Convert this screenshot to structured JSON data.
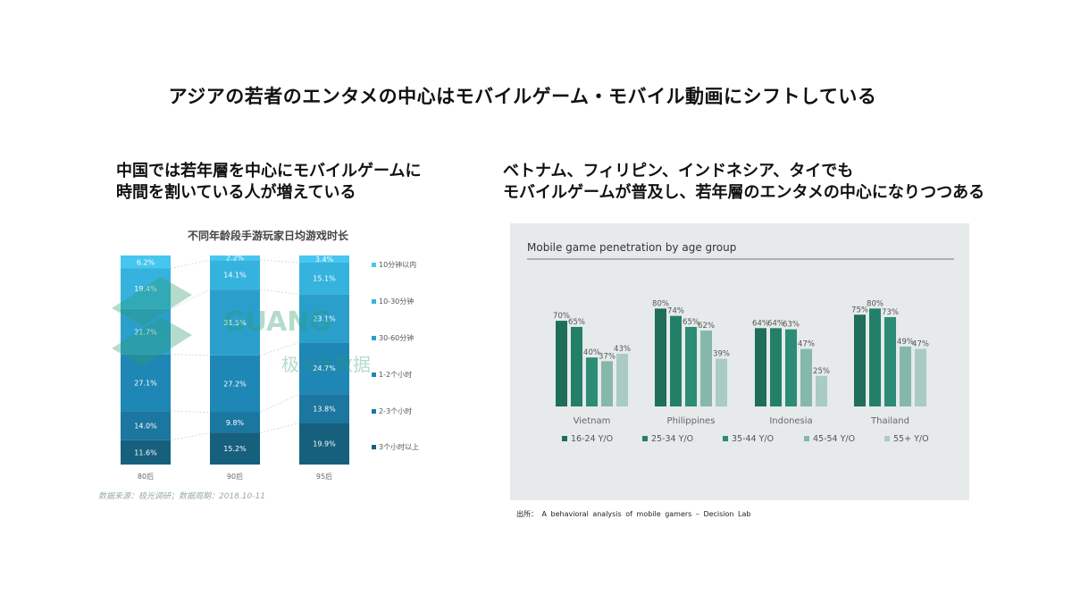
{
  "page": {
    "main_title": "アジアの若者のエンタメの中心はモバイルゲーム・モバイル動画にシフトしている",
    "left_subtitle_line1": "中国では若年層を中心にモバイルゲームに",
    "left_subtitle_line2": "時間を割いている人が増えている",
    "right_subtitle_line1": "ベトナム、フィリピン、インドネシア、タイでも",
    "right_subtitle_line2": "モバイルゲームが普及し、若年層のエンタメの中心になりつつある",
    "left_source": "数据来源：极光调研；数据周期：2018.10-11",
    "right_source": "出所： A behavioral analysis of mobile gamers – Decision Lab",
    "watermark_text": "GUANG 极光大数据"
  },
  "chart_data": [
    {
      "type": "bar",
      "stacked": true,
      "title": "不同年龄段手游玩家日均游戏时长",
      "categories": [
        "80后",
        "90后",
        "95后"
      ],
      "series": [
        {
          "name": "3个小时以上",
          "values": [
            11.6,
            15.2,
            19.9
          ],
          "color": "#16607e"
        },
        {
          "name": "2-3个小时",
          "values": [
            14.0,
            9.8,
            13.8
          ],
          "color": "#1b76a0"
        },
        {
          "name": "1-2个小时",
          "values": [
            27.1,
            27.2,
            24.7
          ],
          "color": "#1f87b5"
        },
        {
          "name": "30-60分钟",
          "values": [
            21.7,
            31.5,
            23.1
          ],
          "color": "#2a9fcc"
        },
        {
          "name": "10-30分钟",
          "values": [
            19.4,
            14.1,
            15.1
          ],
          "color": "#35b3de"
        },
        {
          "name": "10分钟以内",
          "values": [
            6.2,
            2.2,
            3.4
          ],
          "color": "#47c6ef"
        }
      ],
      "legend_position": "right",
      "ylim": [
        0,
        100
      ]
    },
    {
      "type": "bar",
      "title": "Mobile game penetration by age group",
      "categories": [
        "Vietnam",
        "Philippines",
        "Indonesia",
        "Thailand"
      ],
      "series": [
        {
          "name": "16-24 Y/O",
          "values": [
            70,
            80,
            64,
            75
          ],
          "color": "#1e6e5a"
        },
        {
          "name": "25-34 Y/O",
          "values": [
            65,
            74,
            64,
            80
          ],
          "color": "#247f69"
        },
        {
          "name": "35-44 Y/O",
          "values": [
            40,
            65,
            63,
            73
          ],
          "color": "#2d8c76"
        },
        {
          "name": "45-54 Y/O",
          "values": [
            37,
            62,
            47,
            49
          ],
          "color": "#86b8aa"
        },
        {
          "name": "55+ Y/O",
          "values": [
            43,
            39,
            25,
            47
          ],
          "color": "#a9cbc2"
        }
      ],
      "value_suffix": "%",
      "legend_position": "bottom",
      "ylim": [
        0,
        100
      ]
    }
  ]
}
